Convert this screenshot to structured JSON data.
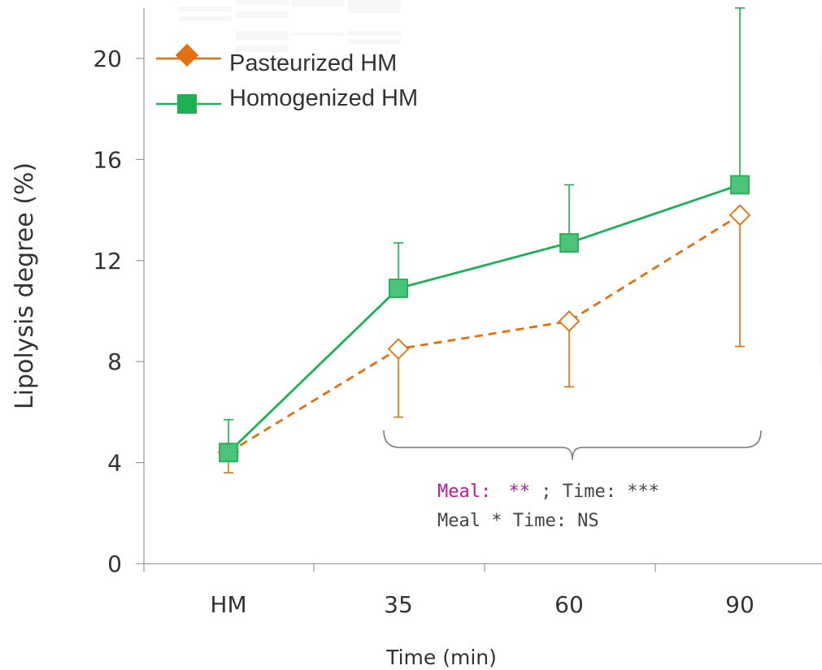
{
  "chart_data": {
    "type": "line",
    "xlabel": "Time (min)",
    "ylabel": "Lipolysis degree (%)",
    "categories": [
      "HM",
      "35",
      "60",
      "90"
    ],
    "ylim": [
      0,
      20
    ],
    "yticks": [
      0,
      4,
      8,
      12,
      16,
      20
    ],
    "grid": false,
    "legend_position": "top-left",
    "series": [
      {
        "name": "Pasteurized HM",
        "color": "#E07010",
        "line_style": "dashed",
        "marker": "diamond",
        "values": [
          4.4,
          8.5,
          9.6,
          13.8
        ],
        "error_upper": [
          0.2,
          0.0,
          0.0,
          0.0
        ],
        "error_lower": [
          0.8,
          2.7,
          2.6,
          5.2
        ]
      },
      {
        "name": "Homogenized HM",
        "color": "#1DB054",
        "line_style": "solid",
        "marker": "square",
        "values": [
          4.4,
          10.9,
          12.7,
          15.0
        ],
        "error_upper": [
          1.3,
          1.8,
          2.3,
          7.0
        ],
        "error_lower": [
          0.0,
          0.0,
          0.0,
          0.0
        ]
      }
    ],
    "annotations": {
      "stats_line1_meal_label": "Meal:",
      "stats_line1_meal_sig": "**",
      "stats_line1_rest": "; Time: ***",
      "stats_line2": "Meal * Time: NS",
      "highlight_color": "#CC1199"
    }
  }
}
